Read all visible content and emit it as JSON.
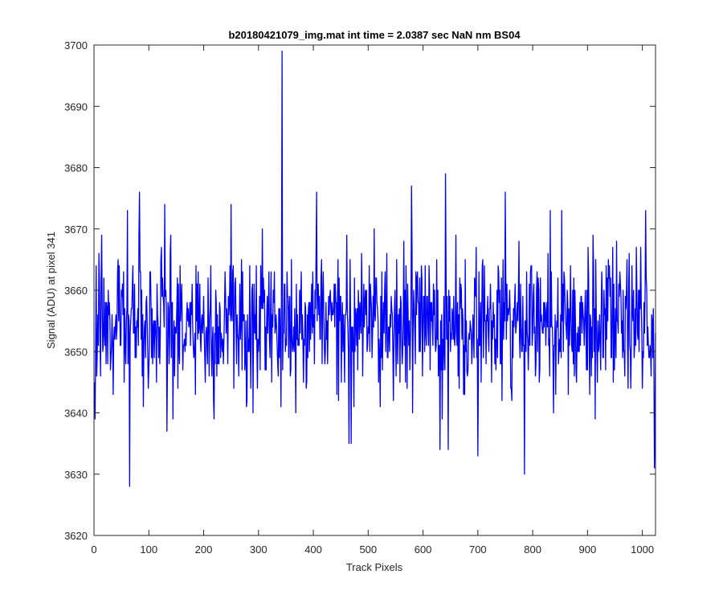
{
  "chart_data": {
    "type": "line",
    "title": "b20180421079_img.mat int time = 2.0387 sec  NaN nm BS04",
    "xlabel": "Track Pixels",
    "ylabel": "Signal (ADU) at pixel 341",
    "xlim": [
      0,
      1024
    ],
    "ylim": [
      3620,
      3700
    ],
    "xticks": [
      0,
      100,
      200,
      300,
      400,
      500,
      600,
      700,
      800,
      900,
      1000
    ],
    "yticks": [
      3620,
      3630,
      3640,
      3650,
      3660,
      3670,
      3680,
      3690,
      3700
    ],
    "grid": false,
    "legend": "none",
    "series_color": "#0000ff",
    "n_points": 1024,
    "baseline": 3655,
    "noise_sd": 5.8,
    "notable_points": [
      {
        "x": 13,
        "y": 3669
      },
      {
        "x": 60,
        "y": 3673
      },
      {
        "x": 64,
        "y": 3628
      },
      {
        "x": 82,
        "y": 3676
      },
      {
        "x": 128,
        "y": 3674
      },
      {
        "x": 143,
        "y": 3639
      },
      {
        "x": 218,
        "y": 3639
      },
      {
        "x": 249,
        "y": 3674
      },
      {
        "x": 306,
        "y": 3670
      },
      {
        "x": 340,
        "y": 3641
      },
      {
        "x": 342,
        "y": 3699
      },
      {
        "x": 405,
        "y": 3676
      },
      {
        "x": 464,
        "y": 3635
      },
      {
        "x": 468,
        "y": 3635
      },
      {
        "x": 578,
        "y": 3677
      },
      {
        "x": 630,
        "y": 3634
      },
      {
        "x": 640,
        "y": 3679
      },
      {
        "x": 645,
        "y": 3634
      },
      {
        "x": 699,
        "y": 3633
      },
      {
        "x": 749,
        "y": 3676
      },
      {
        "x": 784,
        "y": 3630
      },
      {
        "x": 1005,
        "y": 3673
      },
      {
        "x": 1021,
        "y": 3631
      }
    ]
  }
}
